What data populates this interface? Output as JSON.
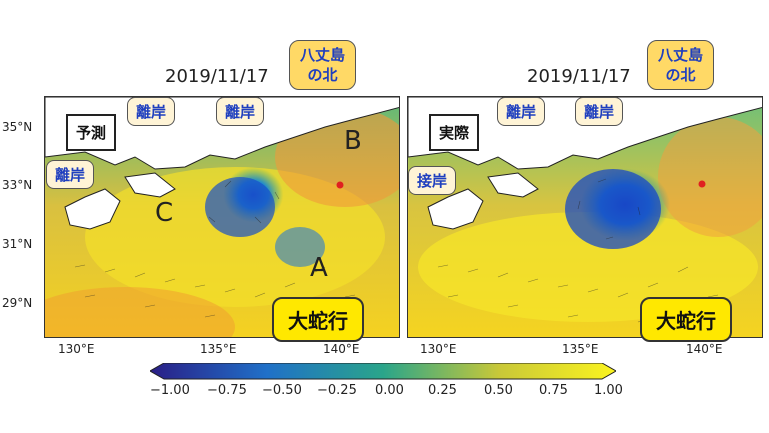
{
  "left": {
    "date": "2019/11/17",
    "tag": "予測",
    "callouts": [
      "離岸",
      "離岸",
      "離岸"
    ],
    "north_callout": "八丈島\nの北",
    "big_callout": "大蛇行",
    "letters": [
      "A",
      "B",
      "C"
    ]
  },
  "right": {
    "date": "2019/11/17",
    "tag": "実際",
    "callouts": [
      "離岸",
      "離岸",
      "接岸"
    ],
    "north_callout": "八丈島\nの北",
    "big_callout": "大蛇行"
  },
  "axes": {
    "lat_labels": [
      "35°N",
      "33°N",
      "31°N",
      "29°N"
    ],
    "lon_labels": [
      "130°E",
      "135°E",
      "140°E"
    ]
  },
  "colorbar": {
    "ticks": [
      "−1.00",
      "−0.75",
      "−0.50",
      "−0.25",
      "0.00",
      "0.25",
      "0.50",
      "0.75",
      "1.00"
    ],
    "range": [
      -1.0,
      1.0
    ]
  },
  "colors": {
    "low": "#2a1e86",
    "mid": "#2aa58a",
    "high": "#fbf41f",
    "marker": "#e02020"
  }
}
